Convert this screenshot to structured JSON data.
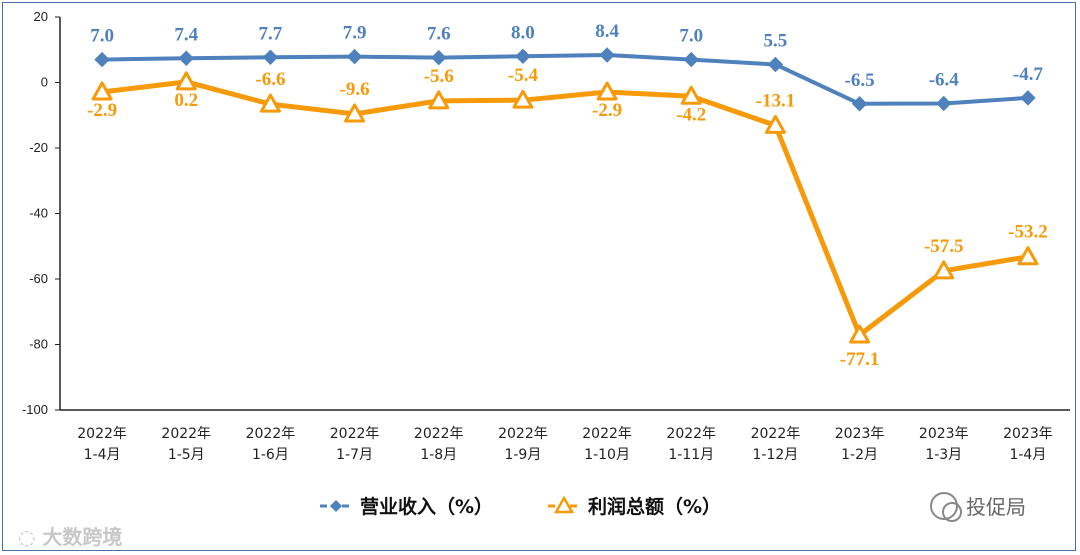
{
  "chart_data": {
    "type": "line",
    "categories": [
      [
        "2022年",
        "1-4月"
      ],
      [
        "2022年",
        "1-5月"
      ],
      [
        "2022年",
        "1-6月"
      ],
      [
        "2022年",
        "1-7月"
      ],
      [
        "2022年",
        "1-8月"
      ],
      [
        "2022年",
        "1-9月"
      ],
      [
        "2022年",
        "1-10月"
      ],
      [
        "2022年",
        "1-11月"
      ],
      [
        "2022年",
        "1-12月"
      ],
      [
        "2023年",
        "1-2月"
      ],
      [
        "2023年",
        "1-3月"
      ],
      [
        "2023年",
        "1-4月"
      ]
    ],
    "ylim": [
      -100,
      20
    ],
    "yticks": [
      20,
      0,
      -20,
      -40,
      -60,
      -80,
      -100
    ],
    "grid": false,
    "legend_position": "bottom",
    "series": [
      {
        "name": "营业收入（%）",
        "color": "#4f81bd",
        "marker": "diamond",
        "values": [
          7.0,
          7.4,
          7.7,
          7.9,
          7.6,
          8.0,
          8.4,
          7.0,
          5.5,
          -6.5,
          -6.4,
          -4.7
        ],
        "labels": [
          "7.0",
          "7.4",
          "7.7",
          "7.9",
          "7.6",
          "8.0",
          "8.4",
          "7.0",
          "5.5",
          "-6.5",
          "-6.4",
          "-4.7"
        ]
      },
      {
        "name": "利润总额（%）",
        "color": "#f79a09",
        "marker": "triangle",
        "values": [
          -2.9,
          0.2,
          -6.6,
          -9.6,
          -5.6,
          -5.4,
          -2.9,
          -4.2,
          -13.1,
          -77.1,
          -57.5,
          -53.2
        ],
        "labels": [
          "-2.9",
          "0.2",
          "-6.6",
          "-9.6",
          "-5.6",
          "-5.4",
          "-2.9",
          "-4.2",
          "-13.1",
          "-77.1",
          "-57.5",
          "-53.2"
        ]
      }
    ]
  },
  "watermarks": {
    "left": "大数跨境",
    "right": "投促局"
  }
}
